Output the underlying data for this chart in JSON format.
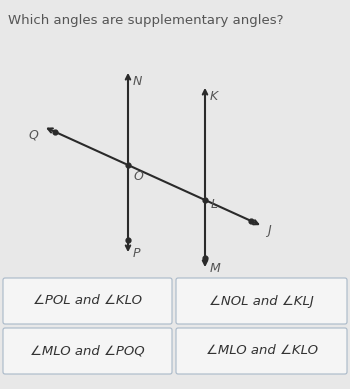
{
  "title": "Which angles are supplementary angles?",
  "title_fontsize": 9.5,
  "bg_color": "#e8e8e8",
  "diagram_bg": "#e8e8e8",
  "line_color": "#2a2a2a",
  "box_bg": "#f5f5f5",
  "box_border": "#a8b8c8",
  "answers": [
    [
      "∠POL and ∠KLO",
      "∠NOL and ∠KLJ"
    ],
    [
      "∠MLO and ∠POQ",
      "∠MLO and ∠KLO"
    ]
  ],
  "answer_fontsize": 9.5,
  "O_fig": [
    0.33,
    0.62
  ],
  "L_fig": [
    0.55,
    0.5
  ],
  "diagram_color": "#2a2a2a"
}
